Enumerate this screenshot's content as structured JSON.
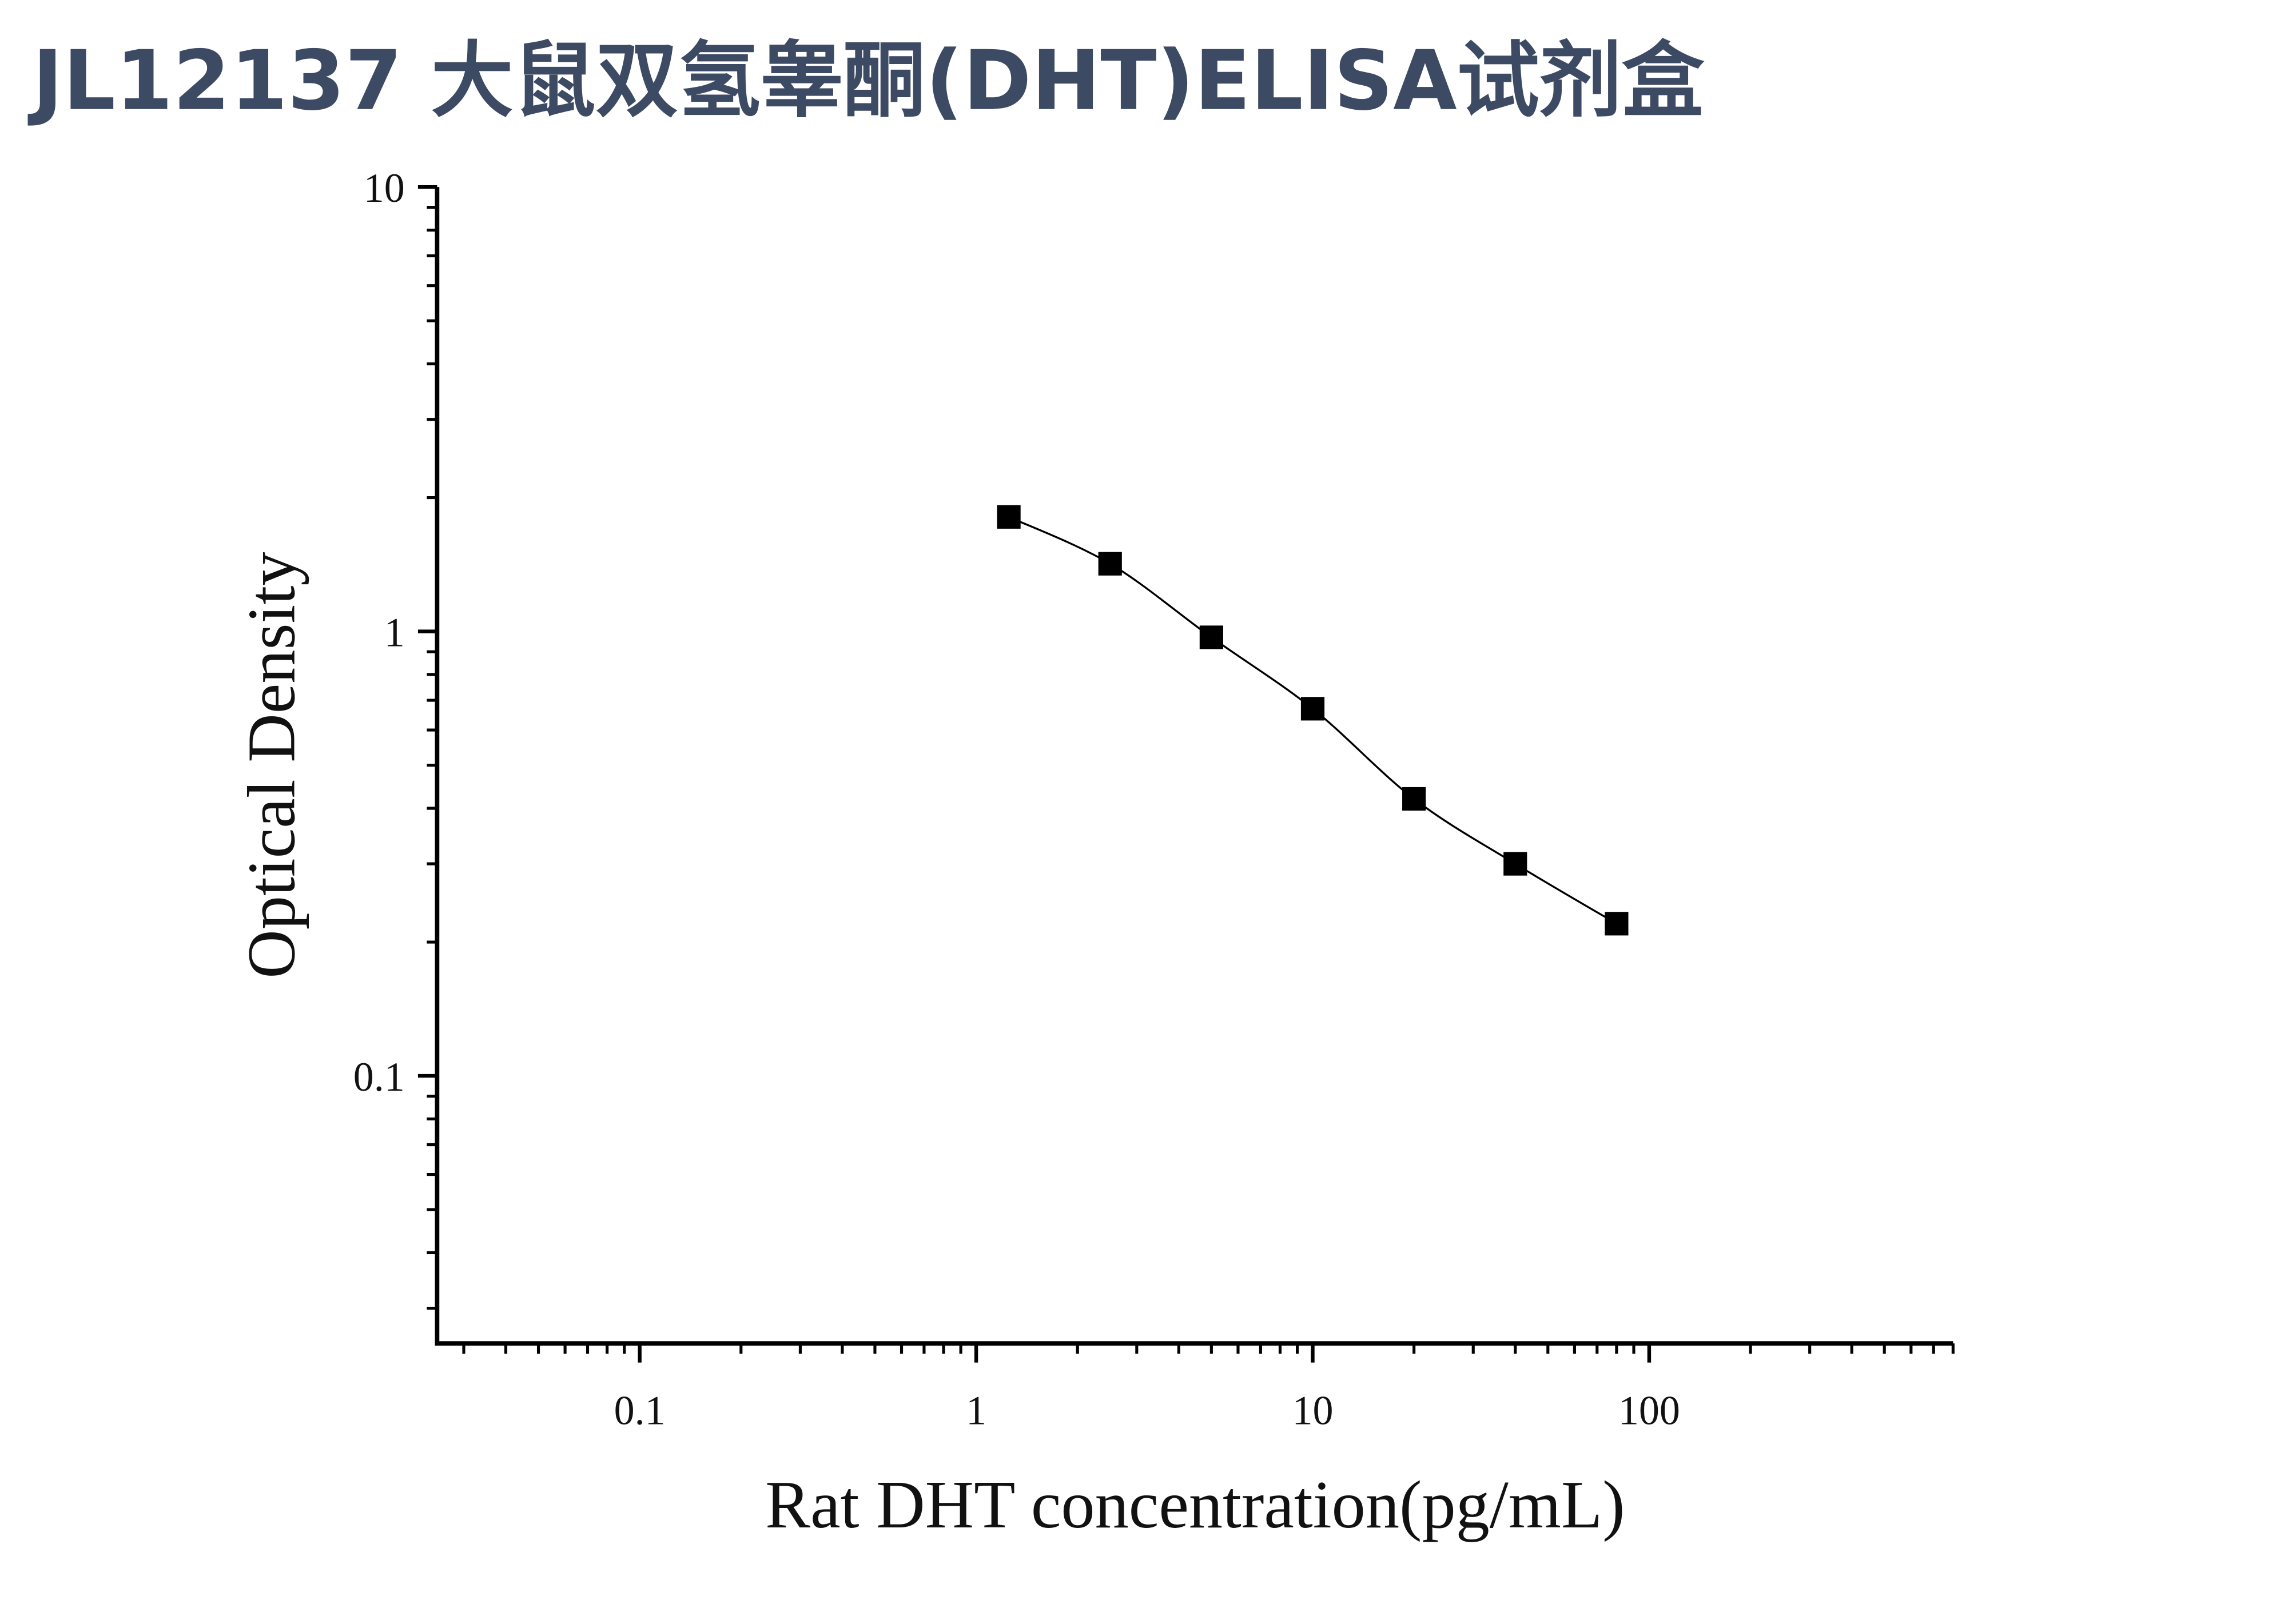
{
  "chart_data": {
    "type": "scatter",
    "title": "JL12137 大鼠双氢睾酮(DHT)ELISA试剂盒",
    "x_label": "Rat DHT concentration(pg/mL)",
    "y_label": "Optical Density",
    "x": [
      1.25,
      2.5,
      5,
      10,
      20,
      40,
      80
    ],
    "series": [
      {
        "color": "#000000",
        "values": [
          1.81,
          1.42,
          0.97,
          0.67,
          0.42,
          0.3,
          0.22
        ]
      }
    ],
    "xlim": [
      0.025,
      800
    ],
    "ylim": [
      0.025,
      10
    ],
    "xticks": [
      0.1,
      1,
      10,
      100
    ],
    "yticks": [
      0.1,
      1,
      10
    ],
    "xscale": "log",
    "yscale": "log",
    "fit_line": true,
    "grid": false
  }
}
